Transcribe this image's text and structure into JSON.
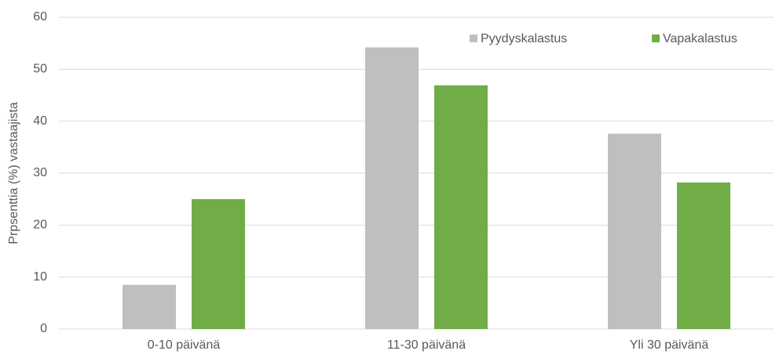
{
  "chart_data": {
    "type": "bar",
    "y_label": "Prpsenttia (%) vastaajista",
    "categories": [
      "0-10 päivänä",
      "11-30 päivänä",
      "Yli 30 päivänä"
    ],
    "series": [
      {
        "name": "Pyydyskalastus",
        "color": "#bfbfbf",
        "values": [
          8.5,
          54.2,
          37.6
        ]
      },
      {
        "name": "Vapakalastus",
        "color": "#70ad47",
        "values": [
          25.0,
          46.9,
          28.2
        ]
      }
    ],
    "ylim": [
      0,
      60
    ],
    "yticks": [
      0,
      10,
      20,
      30,
      40,
      50,
      60
    ],
    "grid": true,
    "legend": "top-right"
  }
}
